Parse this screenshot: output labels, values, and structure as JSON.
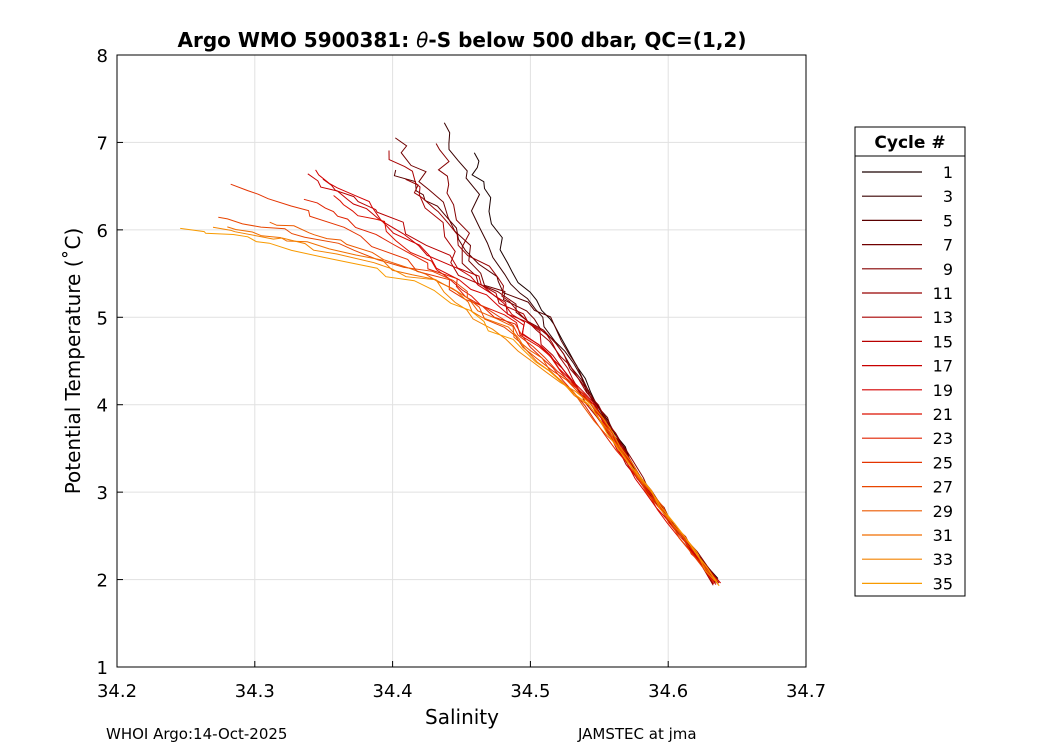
{
  "chart_data": {
    "type": "line",
    "title_prefix": "Argo WMO 5900381: ",
    "title_theta": "θ",
    "title_suffix": "-S below 500 dbar,  QC=(1,2)",
    "xlabel": "Salinity",
    "ylabel": "Potential Temperature (˚C)",
    "xlim": [
      34.2,
      34.7
    ],
    "ylim": [
      1,
      8
    ],
    "xticks": [
      "34.2",
      "34.3",
      "34.4",
      "34.5",
      "34.6",
      "34.7"
    ],
    "yticks": [
      "1",
      "2",
      "3",
      "4",
      "5",
      "6",
      "7",
      "8"
    ],
    "grid": true,
    "legend_title": "Cycle #",
    "legend_position": "right",
    "series": [
      {
        "name": "1",
        "color": "#1a0000"
      },
      {
        "name": "3",
        "color": "#3a0000"
      },
      {
        "name": "5",
        "color": "#5a0000"
      },
      {
        "name": "7",
        "color": "#700000"
      },
      {
        "name": "9",
        "color": "#850000"
      },
      {
        "name": "11",
        "color": "#960000"
      },
      {
        "name": "13",
        "color": "#a80000"
      },
      {
        "name": "15",
        "color": "#b80000"
      },
      {
        "name": "17",
        "color": "#c80000"
      },
      {
        "name": "19",
        "color": "#d40000"
      },
      {
        "name": "21",
        "color": "#dc1000"
      },
      {
        "name": "23",
        "color": "#e02200"
      },
      {
        "name": "25",
        "color": "#e43400"
      },
      {
        "name": "27",
        "color": "#e84600"
      },
      {
        "name": "29",
        "color": "#ec5a00"
      },
      {
        "name": "31",
        "color": "#f06e00"
      },
      {
        "name": "33",
        "color": "#f48400"
      },
      {
        "name": "35",
        "color": "#f89a00"
      }
    ]
  },
  "footer": {
    "left": "WHOI Argo:14-Oct-2025",
    "right": "JAMSTEC at jma"
  }
}
